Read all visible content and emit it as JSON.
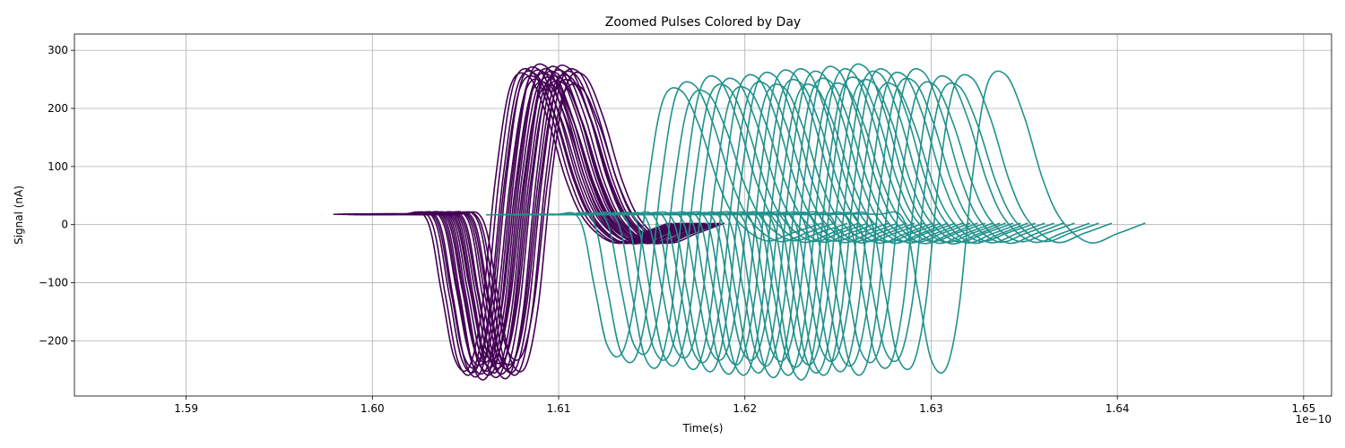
{
  "chart_data": {
    "type": "line",
    "title": "Zoomed Pulses Colored by Day",
    "xlabel": "Time(s)",
    "ylabel": "Signal (nA)",
    "x_offset_label": "1e−10",
    "xlim": [
      1.584,
      1.6515
    ],
    "ylim": [
      -295,
      328
    ],
    "x_ticks": [
      1.59,
      1.6,
      1.61,
      1.62,
      1.63,
      1.64,
      1.65
    ],
    "x_tick_labels": [
      "1.59",
      "1.60",
      "1.61",
      "1.62",
      "1.63",
      "1.64",
      "1.65"
    ],
    "y_ticks": [
      -200,
      -100,
      0,
      100,
      200,
      300
    ],
    "y_tick_labels": [
      "−200",
      "−100",
      "0",
      "100",
      "200",
      "300"
    ],
    "grid": true,
    "legend": "none",
    "colors": {
      "day1": "#440154",
      "day2": "#21918c"
    },
    "pulse_template": {
      "t": [
        -0.0065,
        -0.003,
        -0.0015,
        -0.0007,
        0.0,
        0.0008,
        0.0015,
        0.0022,
        0.003,
        0.004,
        0.005,
        0.006,
        0.007,
        0.0085,
        0.01,
        0.0115
      ],
      "shape": [
        0.03,
        0.03,
        0.0,
        -0.45,
        -0.9,
        -0.96,
        -0.55,
        0.3,
        0.93,
        1.0,
        0.72,
        0.3,
        0.03,
        -0.12,
        -0.06,
        0.01
      ]
    },
    "series": [
      {
        "color_key": "day1",
        "pulses": [
          [
            1.6044,
            255
          ],
          [
            1.6046,
            262
          ],
          [
            1.6048,
            258
          ],
          [
            1.6049,
            250
          ],
          [
            1.605,
            265
          ],
          [
            1.6052,
            245
          ],
          [
            1.6053,
            260
          ],
          [
            1.6054,
            270
          ],
          [
            1.6055,
            240
          ],
          [
            1.6056,
            255
          ],
          [
            1.6057,
            262
          ],
          [
            1.6058,
            248
          ],
          [
            1.6059,
            235
          ],
          [
            1.606,
            258
          ],
          [
            1.6061,
            266
          ],
          [
            1.6062,
            250
          ],
          [
            1.6063,
            242
          ],
          [
            1.6064,
            260
          ],
          [
            1.6066,
            268
          ],
          [
            1.6067,
            252
          ],
          [
            1.6068,
            244
          ],
          [
            1.6069,
            258
          ],
          [
            1.6071,
            262
          ],
          [
            1.6072,
            236
          ],
          [
            1.6074,
            256
          ]
        ]
      },
      {
        "color_key": "day2",
        "pulses": [
          [
            1.6126,
            230
          ],
          [
            1.6133,
            240
          ],
          [
            1.614,
            226
          ],
          [
            1.6146,
            250
          ],
          [
            1.6151,
            236
          ],
          [
            1.6156,
            246
          ],
          [
            1.6162,
            232
          ],
          [
            1.6167,
            252
          ],
          [
            1.6172,
            240
          ],
          [
            1.6176,
            256
          ],
          [
            1.6181,
            236
          ],
          [
            1.6186,
            260
          ],
          [
            1.619,
            244
          ],
          [
            1.6194,
            262
          ],
          [
            1.6198,
            236
          ],
          [
            1.6202,
            258
          ],
          [
            1.6206,
            246
          ],
          [
            1.621,
            266
          ],
          [
            1.6214,
            238
          ],
          [
            1.6218,
            262
          ],
          [
            1.6222,
            248
          ],
          [
            1.6225,
            270
          ],
          [
            1.6229,
            244
          ],
          [
            1.6233,
            258
          ],
          [
            1.6237,
            262
          ],
          [
            1.6241,
            238
          ],
          [
            1.6246,
            256
          ],
          [
            1.6251,
            246
          ],
          [
            1.6256,
            262
          ],
          [
            1.6262,
            240
          ],
          [
            1.627,
            250
          ],
          [
            1.6275,
            238
          ],
          [
            1.6282,
            252
          ],
          [
            1.63,
            258
          ]
        ]
      }
    ]
  }
}
